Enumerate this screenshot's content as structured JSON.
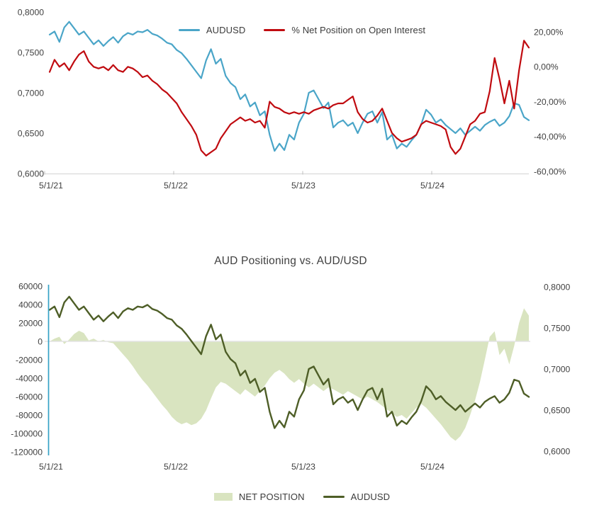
{
  "page": {
    "background": "#ffffff"
  },
  "chart_data": [
    {
      "type": "line",
      "title": "",
      "legend_position": "top-center",
      "grid": "off",
      "x_tick_labels": [
        "5/1/21",
        "5/1/22",
        "5/1/23",
        "5/1/24"
      ],
      "x_unit": "weeks, 2-week sampling from 5/1/21",
      "left_axis": {
        "range": [
          0.6,
          0.8
        ],
        "tick_labels": [
          "0,8000",
          "0,7500",
          "0,7000",
          "0,6500",
          "0,6000"
        ]
      },
      "right_axis": {
        "range": [
          -60,
          20
        ],
        "tick_labels": [
          "20,00%",
          "0,00%",
          "-20,00%",
          "-40,00%",
          "-60,00%"
        ]
      },
      "series": [
        {
          "name": "AUDUSD",
          "axis": "left",
          "style": "line",
          "color": "#4aa5c8",
          "values": [
            0.772,
            0.776,
            0.763,
            0.781,
            0.788,
            0.78,
            0.772,
            0.776,
            0.768,
            0.76,
            0.765,
            0.758,
            0.764,
            0.769,
            0.762,
            0.77,
            0.774,
            0.772,
            0.776,
            0.775,
            0.778,
            0.773,
            0.771,
            0.767,
            0.762,
            0.76,
            0.753,
            0.749,
            0.742,
            0.734,
            0.726,
            0.718,
            0.74,
            0.754,
            0.736,
            0.742,
            0.721,
            0.712,
            0.707,
            0.692,
            0.698,
            0.683,
            0.688,
            0.672,
            0.677,
            0.648,
            0.628,
            0.637,
            0.629,
            0.648,
            0.642,
            0.663,
            0.674,
            0.7,
            0.703,
            0.692,
            0.681,
            0.688,
            0.657,
            0.663,
            0.666,
            0.659,
            0.663,
            0.65,
            0.663,
            0.674,
            0.677,
            0.663,
            0.676,
            0.642,
            0.648,
            0.631,
            0.637,
            0.633,
            0.641,
            0.648,
            0.661,
            0.679,
            0.673,
            0.663,
            0.667,
            0.66,
            0.655,
            0.65,
            0.656,
            0.648,
            0.653,
            0.658,
            0.653,
            0.66,
            0.664,
            0.667,
            0.659,
            0.663,
            0.671,
            0.687,
            0.685,
            0.67,
            0.666
          ]
        },
        {
          "name": "% Net Position on Open Interest",
          "axis": "right",
          "style": "line",
          "color": "#c00b10",
          "values": [
            -3,
            4,
            0,
            2,
            -2,
            3,
            7,
            9,
            3,
            0,
            -1,
            0,
            -2,
            1,
            -2,
            -3,
            0,
            -1,
            -3,
            -6,
            -5,
            -8,
            -10,
            -13,
            -15,
            -18,
            -21,
            -26,
            -30,
            -34,
            -39,
            -48,
            -51,
            -49,
            -47,
            -41,
            -37,
            -33,
            -31,
            -29,
            -31,
            -30,
            -32,
            -31,
            -35,
            -20,
            -23,
            -24,
            -26,
            -27,
            -26,
            -27,
            -26,
            -27,
            -25,
            -24,
            -23,
            -24,
            -22,
            -21,
            -21,
            -19,
            -17,
            -26,
            -30,
            -32,
            -31,
            -28,
            -24,
            -31,
            -38,
            -41,
            -43,
            -42,
            -41,
            -39,
            -33,
            -31,
            -32,
            -33,
            -34,
            -36,
            -46,
            -50,
            -47,
            -40,
            -33,
            -31,
            -27,
            -26,
            -14,
            5,
            -7,
            -21,
            -8,
            -24,
            -2,
            15,
            11
          ]
        }
      ]
    },
    {
      "type": "area",
      "title": "AUD Positioning vs. AUD/USD",
      "legend_position": "bottom-center",
      "grid": "zero-line-only",
      "x_tick_labels": [
        "5/1/21",
        "5/1/22",
        "5/1/23",
        "5/1/24"
      ],
      "x_unit": "weeks, 2-week sampling from 5/1/21",
      "left_axis": {
        "range": [
          -120000,
          60000
        ],
        "tick_labels": [
          "60000",
          "40000",
          "20000",
          "0",
          "-20000",
          "-40000",
          "-60000",
          "-80000",
          "-100000",
          "-120000"
        ]
      },
      "right_axis": {
        "range": [
          0.6,
          0.8
        ],
        "tick_labels": [
          "0,8000",
          "0,7500",
          "0,7000",
          "0,6500",
          "0,6000"
        ]
      },
      "axis_spine_color": "#36a3c6",
      "zero_line_color": "#e4e4e4",
      "series": [
        {
          "name": "NET POSITION",
          "axis": "left",
          "style": "area",
          "color": "#d9e4c0",
          "values": [
            0,
            3000,
            5000,
            -3000,
            2000,
            8000,
            11500,
            9000,
            1000,
            3000,
            0,
            1500,
            -1000,
            -2000,
            -8000,
            -14000,
            -20000,
            -27000,
            -35000,
            -42000,
            -48000,
            -55000,
            -62000,
            -69000,
            -75000,
            -82000,
            -87000,
            -90000,
            -88000,
            -91000,
            -89000,
            -84000,
            -75000,
            -62000,
            -50000,
            -44000,
            -46000,
            -50000,
            -54000,
            -58000,
            -52000,
            -56000,
            -60000,
            -54000,
            -48000,
            -40000,
            -34000,
            -31000,
            -35000,
            -41000,
            -45000,
            -41000,
            -46000,
            -50000,
            -46000,
            -50000,
            -54000,
            -50000,
            -52000,
            -55000,
            -58000,
            -54000,
            -57000,
            -60000,
            -63000,
            -60000,
            -63000,
            -66000,
            -70000,
            -74000,
            -78000,
            -82000,
            -80000,
            -84000,
            -78000,
            -72000,
            -68000,
            -72000,
            -78000,
            -84000,
            -90000,
            -97000,
            -104000,
            -108000,
            -103000,
            -94000,
            -80000,
            -64000,
            -44000,
            -20000,
            5000,
            11000,
            -15000,
            -8000,
            -25000,
            -5000,
            20000,
            36000,
            28000
          ]
        },
        {
          "name": "AUDUSD",
          "axis": "right",
          "style": "line",
          "color": "#4e5e27",
          "values": [
            0.772,
            0.776,
            0.763,
            0.781,
            0.788,
            0.78,
            0.772,
            0.776,
            0.768,
            0.76,
            0.765,
            0.758,
            0.764,
            0.769,
            0.762,
            0.77,
            0.774,
            0.772,
            0.776,
            0.775,
            0.778,
            0.773,
            0.771,
            0.767,
            0.762,
            0.76,
            0.753,
            0.749,
            0.742,
            0.734,
            0.726,
            0.718,
            0.74,
            0.754,
            0.736,
            0.742,
            0.721,
            0.712,
            0.707,
            0.692,
            0.698,
            0.683,
            0.688,
            0.672,
            0.677,
            0.648,
            0.628,
            0.637,
            0.629,
            0.648,
            0.642,
            0.663,
            0.674,
            0.7,
            0.703,
            0.692,
            0.681,
            0.688,
            0.657,
            0.663,
            0.666,
            0.659,
            0.663,
            0.65,
            0.663,
            0.674,
            0.677,
            0.663,
            0.676,
            0.642,
            0.648,
            0.631,
            0.637,
            0.633,
            0.641,
            0.648,
            0.661,
            0.679,
            0.673,
            0.663,
            0.667,
            0.66,
            0.655,
            0.65,
            0.656,
            0.648,
            0.653,
            0.658,
            0.653,
            0.66,
            0.664,
            0.667,
            0.659,
            0.663,
            0.671,
            0.687,
            0.685,
            0.67,
            0.666
          ]
        }
      ]
    }
  ]
}
